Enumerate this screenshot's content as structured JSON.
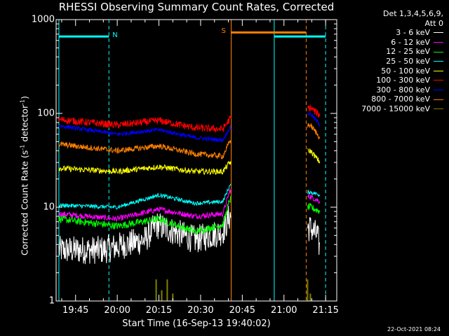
{
  "chart_data": {
    "type": "line",
    "title": "RHESSI Observing Summary Count Rates, Corrected",
    "xlabel": "Start Time (16-Sep-13 19:40:02)",
    "ylabel_main": "Corrected Count Rate (s",
    "ylabel_sup1": "-1",
    "ylabel_mid": " detector",
    "ylabel_sup2": "-1",
    "ylabel_end": ")",
    "y_scale": "log",
    "ylim": [
      1,
      1000
    ],
    "xlim_minutes": [
      -2,
      99
    ],
    "x_tick_labels": [
      "19:45",
      "20:00",
      "20:15",
      "20:30",
      "20:45",
      "21:00",
      "21:15"
    ],
    "x_tick_minutes": [
      5,
      20,
      35,
      50,
      65,
      80,
      95
    ],
    "y_tick_labels": [
      "1",
      "10",
      "100",
      "1000"
    ],
    "y_tick_values": [
      1,
      10,
      100,
      1000
    ],
    "legend_header": [
      "Det 1,3,4,5,6,9,",
      "Att 0"
    ],
    "series": [
      {
        "name": "3 - 6 keV",
        "color": "#ffffff",
        "data": [
          [
            -1,
            3.5
          ],
          [
            15,
            3.5
          ],
          [
            30,
            4.5
          ],
          [
            34,
            6.5
          ],
          [
            48,
            4.5
          ],
          [
            58,
            5.5
          ],
          [
            60.5,
            8
          ],
          [
            89.5,
            6
          ],
          [
            92,
            5
          ],
          [
            93,
            3.5
          ]
        ]
      },
      {
        "name": "6 - 12 keV",
        "color": "#ff00ff",
        "data": [
          [
            -1,
            8.5
          ],
          [
            20,
            7.5
          ],
          [
            35,
            9.5
          ],
          [
            48,
            8
          ],
          [
            58,
            8.5
          ],
          [
            60.5,
            15
          ],
          [
            89.5,
            13
          ],
          [
            93,
            11.5
          ]
        ]
      },
      {
        "name": "12 - 25 keV",
        "color": "#00ff00",
        "data": [
          [
            -1,
            7.5
          ],
          [
            20,
            6.3
          ],
          [
            35,
            7.5
          ],
          [
            48,
            5.5
          ],
          [
            58,
            6.5
          ],
          [
            60.5,
            12
          ],
          [
            89.5,
            10
          ],
          [
            93,
            9
          ]
        ]
      },
      {
        "name": "25 - 50 keV",
        "color": "#00ffff",
        "data": [
          [
            -1,
            10.5
          ],
          [
            20,
            10
          ],
          [
            35,
            13.5
          ],
          [
            48,
            11
          ],
          [
            58,
            11.5
          ],
          [
            60.5,
            17
          ],
          [
            89.5,
            14.5
          ],
          [
            93,
            13.5
          ]
        ]
      },
      {
        "name": "50 - 100 keV",
        "color": "#ffff00",
        "data": [
          [
            -1,
            26
          ],
          [
            20,
            24
          ],
          [
            35,
            27
          ],
          [
            48,
            24
          ],
          [
            58,
            24
          ],
          [
            60.5,
            30
          ],
          [
            89.5,
            40
          ],
          [
            93,
            30
          ]
        ]
      },
      {
        "name": "100 - 300 keV",
        "color": "#ff0000",
        "data": [
          [
            -1,
            86
          ],
          [
            20,
            75
          ],
          [
            35,
            84
          ],
          [
            48,
            70
          ],
          [
            58,
            68
          ],
          [
            60.5,
            87
          ],
          [
            89.5,
            115
          ],
          [
            93,
            95
          ]
        ]
      },
      {
        "name": "300 - 800 keV",
        "color": "#0000ff",
        "data": [
          [
            -1,
            74
          ],
          [
            20,
            60
          ],
          [
            35,
            67
          ],
          [
            48,
            55
          ],
          [
            58,
            52
          ],
          [
            60.5,
            70
          ],
          [
            89.5,
            100
          ],
          [
            93,
            75
          ]
        ]
      },
      {
        "name": "800 - 7000 keV",
        "color": "#ff8000",
        "data": [
          [
            -1,
            47
          ],
          [
            20,
            40
          ],
          [
            35,
            45
          ],
          [
            48,
            37
          ],
          [
            58,
            35
          ],
          [
            60.5,
            50
          ],
          [
            89.5,
            75
          ],
          [
            93,
            55
          ]
        ]
      },
      {
        "name": "7000 - 15000 keV",
        "color": "#808000",
        "data": [
          [
            33,
            1
          ],
          [
            34,
            1.7
          ],
          [
            36,
            1.3
          ],
          [
            38,
            1.7
          ],
          [
            40,
            1.2
          ],
          [
            88.5,
            1.7
          ],
          [
            89.5,
            1.2
          ]
        ]
      }
    ],
    "markers": [
      {
        "label": "N",
        "color": "#00ffff",
        "x_start": -1,
        "x_end": 17,
        "y": 660
      },
      {
        "label": "S",
        "color": "#ff8000",
        "x_start": 61,
        "x_end": 88,
        "y": 730
      },
      {
        "label": "",
        "color": "#00ffff",
        "x_start": 76.5,
        "x_end": 95,
        "y": 660
      }
    ],
    "vlines": [
      {
        "x": -1,
        "color": "#00ffff",
        "style": "solid"
      },
      {
        "x": 17,
        "color": "#00ffff",
        "style": "dashed"
      },
      {
        "x": 61,
        "color": "#ff8000",
        "style": "solid"
      },
      {
        "x": 76.5,
        "color": "#00ffff",
        "style": "solid"
      },
      {
        "x": 88,
        "color": "#ff8000",
        "style": "dashed"
      },
      {
        "x": 95,
        "color": "#00ffff",
        "style": "dashed"
      }
    ]
  },
  "timestamp": "22-Oct-2021 08:24"
}
